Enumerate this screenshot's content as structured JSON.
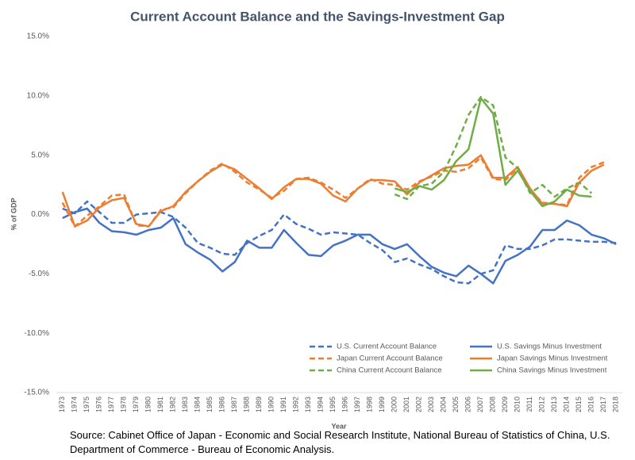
{
  "chart_data": {
    "type": "line",
    "title": "Current Account Balance and the Savings-Investment Gap",
    "x_label": "Year",
    "y_label": "% of GDP",
    "source": "Source: Cabinet Office of Japan - Economic and Social Research Institute, National Bureau of Statistics of China, U.S. Department of Commerce - Bureau of Economic Analysis.",
    "categories": [
      "1973",
      "1974",
      "1975",
      "1976",
      "1977",
      "1978",
      "1979",
      "1980",
      "1981",
      "1982",
      "1983",
      "1984",
      "1985",
      "1986",
      "1987",
      "1988",
      "1989",
      "1990",
      "1991",
      "1992",
      "1993",
      "1994",
      "1995",
      "1996",
      "1997",
      "1998",
      "1999",
      "2000",
      "2001",
      "2002",
      "2003",
      "2004",
      "2005",
      "2006",
      "2007",
      "2008",
      "2009",
      "2010",
      "2011",
      "2012",
      "2013",
      "2014",
      "2015",
      "2016",
      "2017",
      "2018"
    ],
    "ylim": [
      -15,
      15
    ],
    "yticks": [
      {
        "value": -15,
        "label": "-15.0%"
      },
      {
        "value": -10,
        "label": "-10.0%"
      },
      {
        "value": -5,
        "label": "-5.0%"
      },
      {
        "value": 0,
        "label": "0.0%"
      },
      {
        "value": 5,
        "label": "5.0%"
      },
      {
        "value": 10,
        "label": "10.0%"
      },
      {
        "value": 15,
        "label": "15.0%"
      }
    ],
    "grid": false,
    "legend": "bottom",
    "series": [
      {
        "name": "U.S. Current Account Balance",
        "color": "#4472c4",
        "dashed": true,
        "values": [
          0.5,
          0.1,
          1.1,
          0.2,
          -0.7,
          -0.7,
          0.0,
          0.1,
          0.2,
          -0.2,
          -1.1,
          -2.4,
          -2.8,
          -3.3,
          -3.4,
          -2.4,
          -1.8,
          -1.3,
          0.0,
          -0.8,
          -1.2,
          -1.7,
          -1.5,
          -1.6,
          -1.7,
          -2.4,
          -3.0,
          -4.0,
          -3.7,
          -4.2,
          -4.6,
          -5.2,
          -5.7,
          -5.8,
          -5.0,
          -4.7,
          -2.6,
          -2.9,
          -2.9,
          -2.6,
          -2.1,
          -2.1,
          -2.2,
          -2.3,
          -2.3,
          -2.4
        ]
      },
      {
        "name": "U.S. Savings Minus Investment",
        "color": "#4472c4",
        "dashed": false,
        "values": [
          -0.3,
          0.2,
          0.5,
          -0.7,
          -1.4,
          -1.5,
          -1.7,
          -1.3,
          -1.1,
          -0.3,
          -2.5,
          -3.2,
          -3.8,
          -4.8,
          -4.0,
          -2.2,
          -2.8,
          -2.8,
          -1.3,
          -2.4,
          -3.4,
          -3.5,
          -2.6,
          -2.2,
          -1.7,
          -1.7,
          -2.5,
          -2.9,
          -2.5,
          -3.5,
          -4.4,
          -4.9,
          -5.2,
          -4.3,
          -5.0,
          -5.8,
          -3.9,
          -3.4,
          -2.7,
          -1.3,
          -1.3,
          -0.5,
          -0.9,
          -1.7,
          -2.0,
          -2.5
        ]
      },
      {
        "name": "Japan Current Account Balance",
        "color": "#ed7d31",
        "dashed": true,
        "values": [
          1.0,
          -1.0,
          -0.1,
          0.7,
          1.6,
          1.7,
          -0.9,
          -1.0,
          0.4,
          0.6,
          1.8,
          2.8,
          3.7,
          4.3,
          3.6,
          2.7,
          2.1,
          1.4,
          2.0,
          3.0,
          3.1,
          2.7,
          2.1,
          1.4,
          2.2,
          3.0,
          2.6,
          2.5,
          2.1,
          2.8,
          3.2,
          3.7,
          3.6,
          3.9,
          4.8,
          3.0,
          2.9,
          3.9,
          2.1,
          1.0,
          0.9,
          0.8,
          3.1,
          4.0,
          4.4,
          null
        ]
      },
      {
        "name": "Japan Savings Minus Investment",
        "color": "#ed7d31",
        "dashed": false,
        "values": [
          1.9,
          -1.0,
          -0.5,
          0.6,
          1.2,
          1.4,
          -0.8,
          -1.0,
          0.3,
          0.7,
          1.9,
          2.8,
          3.6,
          4.2,
          3.8,
          3.0,
          2.2,
          1.3,
          2.3,
          3.0,
          3.0,
          2.6,
          1.6,
          1.1,
          2.2,
          2.9,
          2.9,
          2.8,
          1.7,
          2.7,
          3.3,
          3.9,
          4.1,
          4.2,
          5.0,
          3.1,
          3.1,
          4.0,
          2.2,
          0.9,
          0.9,
          0.7,
          2.7,
          3.7,
          4.2,
          null
        ]
      },
      {
        "name": "China Current Account Balance",
        "color": "#70ad47",
        "dashed": true,
        "values": [
          null,
          null,
          null,
          null,
          null,
          null,
          null,
          null,
          null,
          null,
          null,
          null,
          null,
          null,
          null,
          null,
          null,
          null,
          null,
          null,
          null,
          null,
          null,
          null,
          null,
          null,
          null,
          1.7,
          1.3,
          2.4,
          2.6,
          3.6,
          5.8,
          8.4,
          9.9,
          9.2,
          4.8,
          3.9,
          1.8,
          2.5,
          1.5,
          2.2,
          2.7,
          1.8,
          null,
          null
        ]
      },
      {
        "name": "China Savings Minus Investment",
        "color": "#70ad47",
        "dashed": false,
        "values": [
          null,
          null,
          null,
          null,
          null,
          null,
          null,
          null,
          null,
          null,
          null,
          null,
          null,
          null,
          null,
          null,
          null,
          null,
          null,
          null,
          null,
          null,
          null,
          null,
          null,
          null,
          null,
          2.2,
          1.9,
          2.4,
          2.1,
          2.9,
          4.5,
          5.5,
          9.8,
          8.5,
          2.5,
          3.7,
          2.0,
          0.7,
          1.1,
          2.1,
          1.6,
          1.5,
          null,
          null
        ]
      }
    ]
  }
}
